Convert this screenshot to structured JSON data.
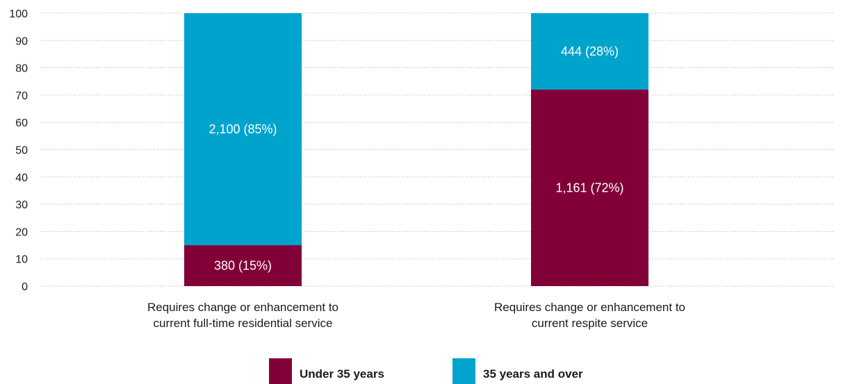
{
  "chart_data": {
    "type": "bar",
    "stacked": true,
    "categories": [
      [
        "Requires change or enhancement to",
        "current full-time residential service"
      ],
      [
        "Requires change or enhancement to",
        "current respite service"
      ]
    ],
    "series": [
      {
        "name": "Under 35 years",
        "color": "#820038",
        "values": [
          15,
          72
        ],
        "labels": [
          "380 (15%)",
          "1,161 (72%)"
        ]
      },
      {
        "name": "35 years and over",
        "color": "#00A3CC",
        "values": [
          85,
          28
        ],
        "labels": [
          "2,100 (85%)",
          "444 (28%)"
        ]
      }
    ],
    "ylim": [
      0,
      100
    ],
    "yticks": [
      0,
      10,
      20,
      30,
      40,
      50,
      60,
      70,
      80,
      90,
      100
    ],
    "grid": true,
    "legend_position": "bottom"
  }
}
